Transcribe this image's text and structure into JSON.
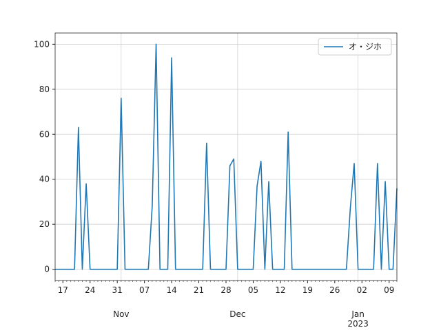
{
  "chart_data": {
    "type": "line",
    "series": [
      {
        "name": "オ・ジホ",
        "color": "#1f77b4",
        "values": [
          0,
          0,
          0,
          0,
          0,
          0,
          63,
          0,
          38,
          0,
          0,
          0,
          0,
          0,
          0,
          0,
          0,
          76,
          0,
          0,
          0,
          0,
          0,
          0,
          0,
          28,
          100,
          0,
          0,
          0,
          94,
          0,
          0,
          0,
          0,
          0,
          0,
          0,
          0,
          56,
          0,
          0,
          0,
          0,
          0,
          46,
          49,
          0,
          0,
          0,
          0,
          0,
          37,
          48,
          0,
          39,
          0,
          0,
          0,
          0,
          61,
          0,
          0,
          0,
          0,
          0,
          0,
          0,
          0,
          0,
          0,
          0,
          0,
          0,
          0,
          0,
          27,
          47,
          0,
          0,
          0,
          0,
          0,
          47,
          0,
          39,
          0,
          0,
          36
        ]
      }
    ],
    "x_start": "2022-10-15",
    "xlim": [
      "2022-10-15",
      "2023-01-11"
    ],
    "xticks": [
      {
        "value": "2022-10-17",
        "label": "17"
      },
      {
        "value": "2022-10-24",
        "label": "24"
      },
      {
        "value": "2022-10-31",
        "label": "31"
      },
      {
        "value": "2022-11-07",
        "label": "07"
      },
      {
        "value": "2022-11-14",
        "label": "14"
      },
      {
        "value": "2022-11-21",
        "label": "21"
      },
      {
        "value": "2022-11-28",
        "label": "28"
      },
      {
        "value": "2022-12-05",
        "label": "05"
      },
      {
        "value": "2022-12-12",
        "label": "12"
      },
      {
        "value": "2022-12-19",
        "label": "19"
      },
      {
        "value": "2022-12-26",
        "label": "26"
      },
      {
        "value": "2023-01-02",
        "label": "02"
      },
      {
        "value": "2023-01-09",
        "label": "09"
      }
    ],
    "month_ticks": [
      {
        "value": "2022-11-01",
        "label": "Nov"
      },
      {
        "value": "2022-12-01",
        "label": "Dec"
      },
      {
        "value": "2023-01-01",
        "label": "Jan",
        "year": "2023"
      }
    ],
    "ylim": [
      -5,
      105
    ],
    "yticks": [
      0,
      20,
      40,
      60,
      80,
      100
    ],
    "grid": true,
    "legend": "upper right"
  }
}
